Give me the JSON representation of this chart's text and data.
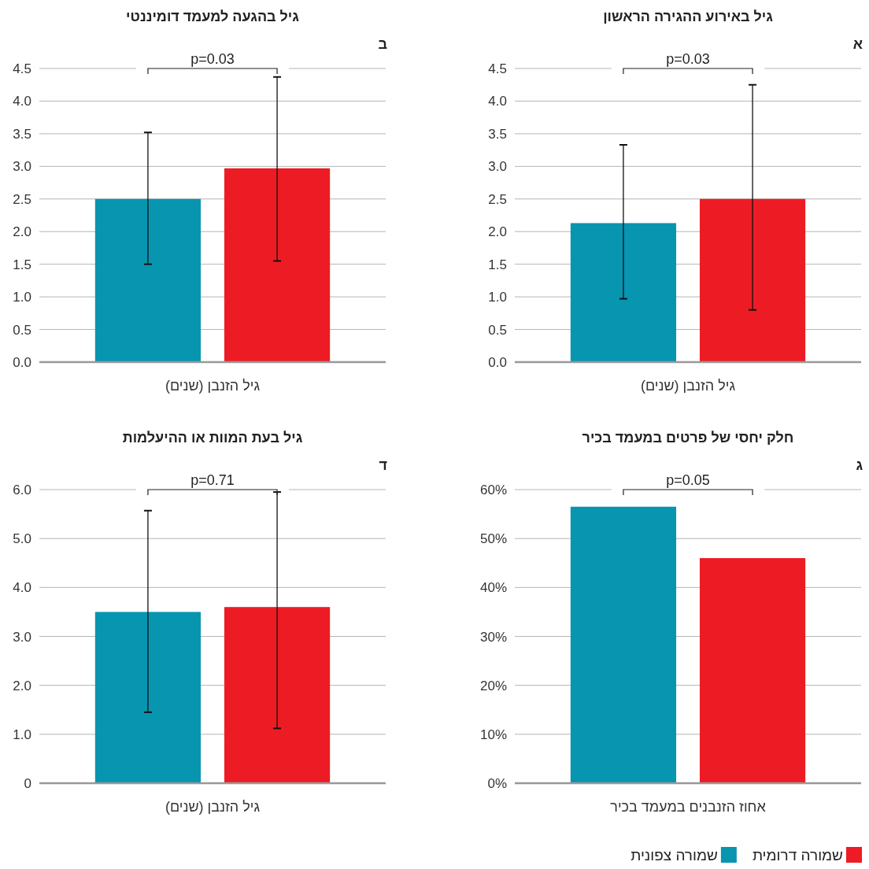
{
  "chart_data": [
    {
      "type": "bar",
      "title": "גיל באירוע ההגירה הראשון",
      "subtitle": "א",
      "xlabel": "גיל הזנבן (שנים)",
      "categories": [
        null
      ],
      "ylim": [
        0,
        4.5
      ],
      "yticks": [
        {
          "value": 0,
          "label": "0.0"
        },
        0.5,
        {
          "value": 1,
          "label": "1.0"
        },
        1.5,
        {
          "value": 2,
          "label": "2.0"
        },
        2.5,
        {
          "value": 3,
          "label": "3.0"
        },
        3.5,
        {
          "value": 4,
          "label": "4.0"
        },
        4.5
      ],
      "grid": "y",
      "legend": "bottom",
      "annotations": [
        "p=0.03"
      ],
      "series": [
        {
          "name": "שמורה צפונית",
          "color": "#0795b0",
          "values": [
            2.13
          ],
          "errors": [
            [
              0.97,
              3.33
            ]
          ]
        },
        {
          "name": "שמורה דרומית",
          "color": "#ed1c24",
          "values": [
            2.5
          ],
          "errors": [
            [
              0.8,
              4.25
            ]
          ]
        }
      ]
    },
    {
      "type": "bar",
      "title": "גיל בהגעה למעמד דומיננטי",
      "subtitle": "ב",
      "xlabel": "גיל הזנבן (שנים)",
      "categories": [
        null
      ],
      "ylim": [
        0,
        4.5
      ],
      "yticks": [
        {
          "value": 0,
          "label": "0.0"
        },
        0.5,
        {
          "value": 1,
          "label": "1.0"
        },
        1.5,
        {
          "value": 2,
          "label": "2.0"
        },
        2.5,
        {
          "value": 3,
          "label": "3.0"
        },
        3.5,
        {
          "value": 4,
          "label": "4.0"
        },
        4.5
      ],
      "grid": "y",
      "annotations": [
        "p=0.03"
      ],
      "series": [
        {
          "color": "#0795b0",
          "values": [
            2.5
          ],
          "errors": [
            [
              1.5,
              3.52
            ]
          ]
        },
        {
          "color": "#ed1c24",
          "values": [
            2.97
          ],
          "errors": [
            [
              1.55,
              4.37
            ]
          ]
        }
      ]
    },
    {
      "type": "bar",
      "title": "חלק יחסי של פרטים במעמד בכיר",
      "subtitle": "ג",
      "xlabel": "אחוז הזנבנים במעמד בכיר",
      "categories": [
        null
      ],
      "ylim": [
        0,
        60
      ],
      "yticks": [
        {
          "value": 0,
          "label": "0%"
        },
        {
          "value": 10,
          "label": "10%"
        },
        {
          "value": 20,
          "label": "20%"
        },
        {
          "value": 30,
          "label": "30%"
        },
        {
          "value": 40,
          "label": "40%"
        },
        {
          "value": 50,
          "label": "50%"
        },
        {
          "value": 60,
          "label": "60%"
        }
      ],
      "grid": "y",
      "annotations": [
        "p=0.05"
      ],
      "series": [
        {
          "color": "#0795b0",
          "values": [
            56.5
          ]
        },
        {
          "color": "#ed1c24",
          "values": [
            46
          ]
        }
      ]
    },
    {
      "type": "bar",
      "title": "גיל בעת המוות או ההיעלמות",
      "subtitle": "ד",
      "xlabel": "גיל הזנבן (שנים)",
      "categories": [
        null
      ],
      "ylim": [
        0,
        6
      ],
      "yticks": [
        0,
        {
          "value": 1,
          "label": "1.0"
        },
        {
          "value": 2,
          "label": "2.0"
        },
        {
          "value": 3,
          "label": "3.0"
        },
        {
          "value": 4,
          "label": "4.0"
        },
        {
          "value": 5,
          "label": "5.0"
        },
        {
          "value": 6,
          "label": "6.0"
        }
      ],
      "grid": "y",
      "annotations": [
        "p=0.71"
      ],
      "series": [
        {
          "color": "#0795b0",
          "values": [
            3.5
          ],
          "errors": [
            [
              1.45,
              5.57
            ]
          ]
        },
        {
          "color": "#ed1c24",
          "values": [
            3.6
          ],
          "errors": [
            [
              1.12,
              5.95
            ]
          ]
        }
      ]
    }
  ]
}
